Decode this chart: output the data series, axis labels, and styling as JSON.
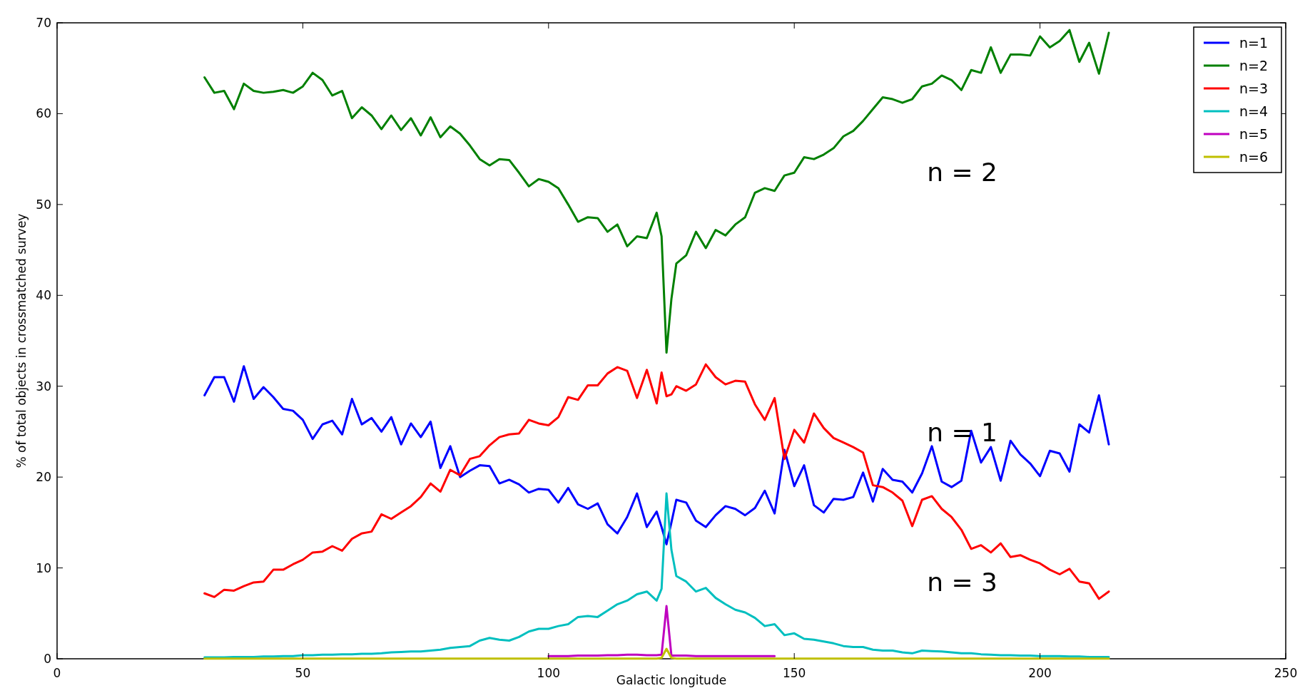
{
  "chart_data": {
    "type": "line",
    "xlabel": "Galactic longitude",
    "ylabel": "% of total objects in crossmatched survey",
    "xlim": [
      0,
      250
    ],
    "xticks": [
      0,
      50,
      100,
      150,
      200,
      250
    ],
    "ylim": [
      0,
      70
    ],
    "yticks": [
      0,
      10,
      20,
      30,
      40,
      50,
      60,
      70
    ],
    "grid": false,
    "legend": "top right",
    "marker": "none",
    "line_style": "solid",
    "x": [
      30,
      32,
      34,
      36,
      38,
      40,
      42,
      44,
      46,
      48,
      50,
      52,
      54,
      56,
      58,
      60,
      62,
      64,
      66,
      68,
      70,
      72,
      74,
      76,
      78,
      80,
      82,
      84,
      86,
      88,
      90,
      92,
      94,
      96,
      98,
      100,
      102,
      104,
      106,
      108,
      110,
      112,
      114,
      116,
      118,
      120,
      122,
      123,
      124,
      125,
      126,
      128,
      130,
      132,
      134,
      136,
      138,
      140,
      142,
      144,
      146,
      148,
      150,
      152,
      154,
      156,
      158,
      160,
      162,
      164,
      166,
      168,
      170,
      172,
      174,
      176,
      178,
      180,
      182,
      184,
      186,
      188,
      190,
      192,
      194,
      196,
      198,
      200,
      202,
      204,
      206,
      208,
      210,
      212,
      214
    ],
    "series": [
      {
        "name": "n=1",
        "color": "#0000ff",
        "values": [
          29,
          31,
          31,
          28.3,
          32.2,
          28.6,
          29.9,
          28.8,
          27.5,
          27.3,
          26.3,
          24.2,
          25.8,
          26.2,
          24.7,
          28.6,
          25.8,
          26.5,
          25,
          26.6,
          23.6,
          25.9,
          24.4,
          26.1,
          21,
          23.4,
          20,
          20.7,
          21.3,
          21.2,
          19.3,
          19.7,
          19.2,
          18.3,
          18.7,
          18.6,
          17.2,
          18.8,
          17,
          16.5,
          17.1,
          14.8,
          13.8,
          15.6,
          18.2,
          14.5,
          16.2,
          14.5,
          12.6,
          15,
          17.5,
          17.2,
          15.2,
          14.5,
          15.8,
          16.8,
          16.5,
          15.8,
          16.6,
          18.5,
          16,
          23,
          19,
          21.3,
          16.9,
          16.1,
          17.6,
          17.5,
          17.8,
          20.5,
          17.3,
          20.9,
          19.7,
          19.5,
          18.3,
          20.4,
          23.4,
          19.5,
          18.9,
          19.6,
          25.1,
          21.6,
          23.3,
          19.6,
          24,
          22.5,
          21.5,
          20.1,
          22.9,
          22.6,
          20.6,
          25.8,
          24.9,
          29,
          23.6
        ]
      },
      {
        "name": "n=2",
        "color": "#008000",
        "values": [
          64,
          62.3,
          62.5,
          60.5,
          63.3,
          62.5,
          62.3,
          62.4,
          62.6,
          62.3,
          63,
          64.5,
          63.7,
          62,
          62.5,
          59.5,
          60.7,
          59.8,
          58.3,
          59.8,
          58.2,
          59.5,
          57.6,
          59.6,
          57.4,
          58.6,
          57.8,
          56.5,
          55,
          54.3,
          55,
          54.9,
          53.5,
          52,
          52.8,
          52.5,
          51.8,
          50,
          48.1,
          48.6,
          48.5,
          47,
          47.8,
          45.4,
          46.5,
          46.3,
          49.1,
          46.5,
          33.7,
          39.6,
          43.5,
          44.4,
          47,
          45.2,
          47.2,
          46.6,
          47.8,
          48.6,
          51.3,
          51.8,
          51.5,
          53.2,
          53.5,
          55.2,
          55,
          55.5,
          56.2,
          57.5,
          58.1,
          59.2,
          60.5,
          61.8,
          61.6,
          61.2,
          61.6,
          63,
          63.3,
          64.2,
          63.7,
          62.6,
          64.8,
          64.5,
          67.3,
          64.5,
          66.5,
          66.5,
          66.4,
          68.5,
          67.3,
          68,
          69.2,
          65.7,
          67.8,
          64.4,
          68.9
        ]
      },
      {
        "name": "n=3",
        "color": "#ff0000",
        "values": [
          7.2,
          6.8,
          7.6,
          7.5,
          8,
          8.4,
          8.5,
          9.8,
          9.8,
          10.4,
          10.9,
          11.7,
          11.8,
          12.4,
          11.9,
          13.2,
          13.8,
          14,
          15.9,
          15.4,
          16.1,
          16.8,
          17.8,
          19.3,
          18.4,
          20.8,
          20.2,
          22,
          22.3,
          23.5,
          24.4,
          24.7,
          24.8,
          26.3,
          25.9,
          25.7,
          26.6,
          28.8,
          28.5,
          30.1,
          30.1,
          31.4,
          32.1,
          31.7,
          28.7,
          31.8,
          28.1,
          31.5,
          28.9,
          29.1,
          30,
          29.5,
          30.2,
          32.4,
          31,
          30.2,
          30.6,
          30.5,
          28,
          26.3,
          28.7,
          22,
          25.2,
          23.8,
          27,
          25.4,
          24.3,
          23.8,
          23.3,
          22.7,
          19.1,
          18.9,
          18.3,
          17.4,
          14.6,
          17.5,
          17.9,
          16.5,
          15.6,
          14.2,
          12.1,
          12.5,
          11.7,
          12.7,
          11.2,
          11.4,
          10.9,
          10.5,
          9.8,
          9.3,
          9.9,
          8.5,
          8.3,
          6.6,
          7.4
        ]
      },
      {
        "name": "n=4",
        "color": "#00bfbf",
        "values": [
          0.15,
          0.15,
          0.15,
          0.2,
          0.2,
          0.2,
          0.25,
          0.25,
          0.3,
          0.3,
          0.4,
          0.4,
          0.45,
          0.45,
          0.5,
          0.5,
          0.55,
          0.55,
          0.6,
          0.7,
          0.75,
          0.8,
          0.8,
          0.9,
          1,
          1.2,
          1.3,
          1.4,
          2,
          2.3,
          2.1,
          2,
          2.4,
          3,
          3.3,
          3.3,
          3.6,
          3.8,
          4.6,
          4.7,
          4.6,
          5.3,
          6,
          6.4,
          7.1,
          7.4,
          6.4,
          7.7,
          18.2,
          12,
          9.1,
          8.5,
          7.4,
          7.8,
          6.7,
          6,
          5.4,
          5.1,
          4.5,
          3.6,
          3.8,
          2.6,
          2.8,
          2.2,
          2.1,
          1.9,
          1.7,
          1.4,
          1.3,
          1.3,
          1,
          0.9,
          0.9,
          0.7,
          0.6,
          0.9,
          0.85,
          0.8,
          0.7,
          0.6,
          0.6,
          0.5,
          0.45,
          0.4,
          0.4,
          0.35,
          0.35,
          0.3,
          0.3,
          0.3,
          0.25,
          0.25,
          0.2,
          0.2,
          0.2
        ]
      },
      {
        "name": "n=5",
        "color": "#bf00bf",
        "values": [
          null,
          null,
          null,
          null,
          null,
          null,
          null,
          null,
          null,
          null,
          null,
          null,
          null,
          null,
          null,
          null,
          null,
          null,
          null,
          null,
          null,
          null,
          null,
          null,
          null,
          null,
          null,
          null,
          null,
          null,
          null,
          null,
          null,
          null,
          null,
          0.3,
          0.3,
          0.3,
          0.35,
          0.35,
          0.35,
          0.4,
          0.4,
          0.45,
          0.45,
          0.4,
          0.4,
          0.45,
          5.8,
          0.35,
          0.35,
          0.35,
          0.3,
          0.3,
          0.3,
          0.3,
          0.3,
          0.3,
          0.3,
          0.3,
          0.3,
          null,
          null,
          null,
          null,
          null,
          null,
          null,
          null,
          null,
          null,
          null,
          null,
          null,
          null,
          null,
          null,
          null,
          null,
          null,
          null,
          null,
          null,
          null,
          null,
          null,
          null,
          null,
          null,
          null,
          null,
          null,
          null,
          null,
          null
        ]
      },
      {
        "name": "n=6",
        "color": "#bfbf00",
        "values": [
          0.02,
          0.02,
          0.02,
          0.02,
          0.02,
          0.02,
          0.02,
          0.02,
          0.02,
          0.02,
          0.02,
          0.02,
          0.02,
          0.02,
          0.02,
          0.02,
          0.02,
          0.02,
          0.02,
          0.02,
          0.02,
          0.02,
          0.02,
          0.02,
          0.02,
          0.02,
          0.02,
          0.02,
          0.02,
          0.02,
          0.02,
          0.02,
          0.02,
          0.02,
          0.02,
          0.02,
          0.02,
          0.02,
          0.02,
          0.02,
          0.02,
          0.02,
          0.02,
          0.02,
          0.02,
          0.02,
          0.02,
          0.1,
          1.1,
          0.1,
          0.02,
          0.02,
          0.02,
          0.02,
          0.02,
          0.02,
          0.02,
          0.02,
          0.02,
          0.02,
          0.02,
          0.02,
          0.02,
          0.02,
          0.02,
          0.02,
          0.02,
          0.02,
          0.02,
          0.02,
          0.02,
          0.02,
          0.02,
          0.02,
          0.02,
          0.02,
          0.02,
          0.02,
          0.02,
          0.02,
          0.02,
          0.02,
          0.02,
          0.02,
          0.02,
          0.02,
          0.02,
          0.02,
          0.02,
          0.02,
          0.02,
          0.02,
          0.02,
          0.02,
          0.02
        ]
      }
    ],
    "annotations": [
      "n = 2",
      "n = 1",
      "n = 3"
    ]
  }
}
